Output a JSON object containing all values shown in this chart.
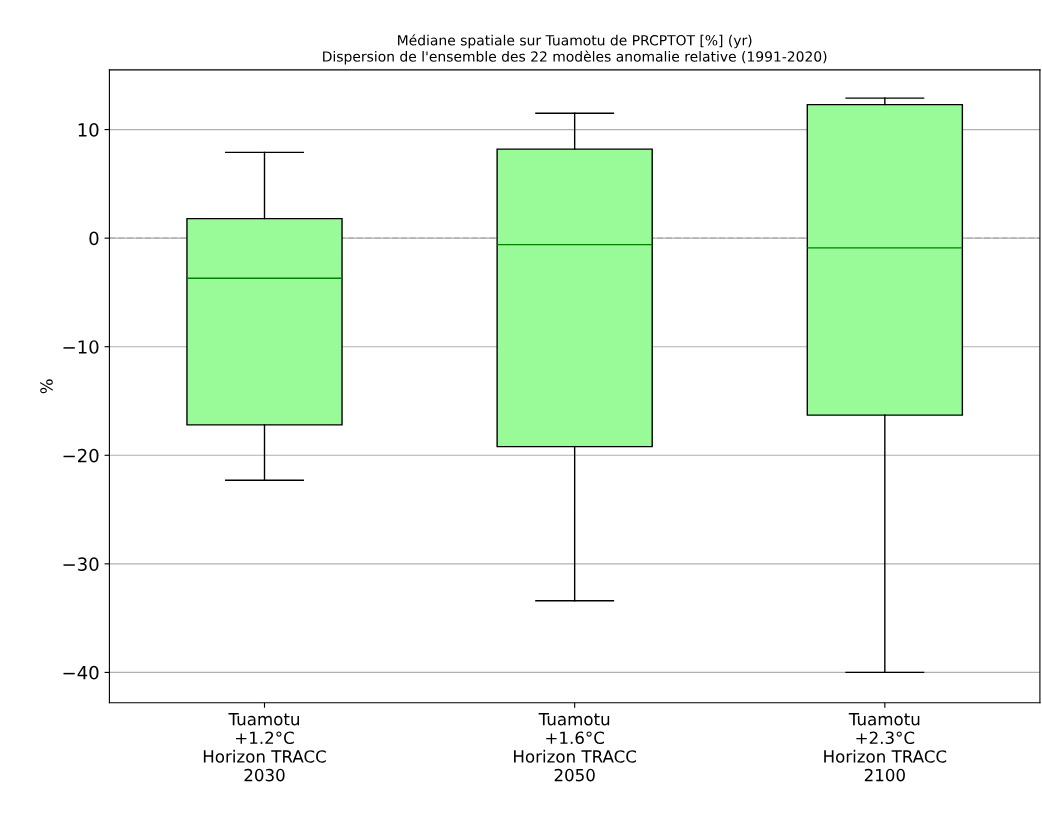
{
  "chart_data": {
    "type": "box",
    "title": "Médiane spatiale sur Tuamotu de PRCPTOT [%] (yr)\nDispersion de l'ensemble des 22 modèles anomalie relative (1991-2020)",
    "ylabel": "%",
    "categories": [
      "Tuamotu\n+1.2°C\nHorizon TRACC\n2030",
      "Tuamotu\n+1.6°C\nHorizon TRACC\n2050",
      "Tuamotu\n+2.3°C\nHorizon TRACC\n2100"
    ],
    "boxes": [
      {
        "low": -22.3,
        "q1": -17.2,
        "median": -3.7,
        "q3": 1.8,
        "high": 7.9
      },
      {
        "low": -33.4,
        "q1": -19.2,
        "median": -0.6,
        "q3": 8.2,
        "high": 11.5
      },
      {
        "low": -40,
        "q1": -16.3,
        "median": -0.9,
        "q3": 12.3,
        "high": 12.9
      }
    ],
    "color": "#98fb98",
    "ylim": [
      -42.8,
      15.5
    ],
    "yticks": [
      {
        "value": -40,
        "label": "−40"
      },
      {
        "value": -30,
        "label": "−30"
      },
      {
        "value": -20,
        "label": "−20"
      },
      {
        "value": -10,
        "label": "−10"
      },
      0,
      10
    ],
    "grid": "y",
    "ref_lines": [
      {
        "axis": "y",
        "value": 0,
        "label": null,
        "color": "#bbbbbb",
        "line_style": "dashed"
      }
    ]
  }
}
